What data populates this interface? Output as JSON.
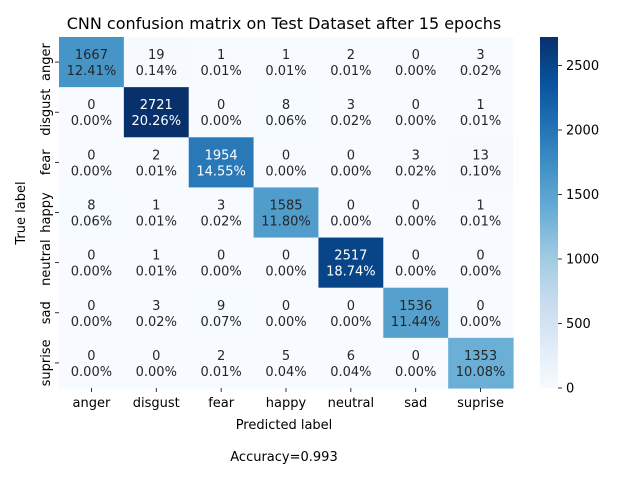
{
  "chart_data": {
    "type": "heatmap",
    "title": "CNN confusion matrix on Test Dataset after 15 epochs",
    "xlabel": "Predicted label",
    "ylabel": "True label",
    "footer": "Accuracy=0.993",
    "x_categories": [
      "anger",
      "disgust",
      "fear",
      "happy",
      "neutral",
      "sad",
      "suprise"
    ],
    "y_categories": [
      "anger",
      "disgust",
      "fear",
      "happy",
      "neutral",
      "sad",
      "suprise"
    ],
    "counts": [
      [
        1667,
        19,
        1,
        1,
        2,
        0,
        3
      ],
      [
        0,
        2721,
        0,
        8,
        3,
        0,
        1
      ],
      [
        0,
        2,
        1954,
        0,
        0,
        3,
        13
      ],
      [
        8,
        1,
        3,
        1585,
        0,
        0,
        1
      ],
      [
        0,
        1,
        0,
        0,
        2517,
        0,
        0
      ],
      [
        0,
        3,
        9,
        0,
        0,
        1536,
        0
      ],
      [
        0,
        0,
        2,
        5,
        6,
        0,
        1353
      ]
    ],
    "percents": [
      [
        "12.41%",
        "0.14%",
        "0.01%",
        "0.01%",
        "0.01%",
        "0.00%",
        "0.02%"
      ],
      [
        "0.00%",
        "20.26%",
        "0.00%",
        "0.06%",
        "0.02%",
        "0.00%",
        "0.01%"
      ],
      [
        "0.00%",
        "0.01%",
        "14.55%",
        "0.00%",
        "0.00%",
        "0.02%",
        "0.10%"
      ],
      [
        "0.06%",
        "0.01%",
        "0.02%",
        "11.80%",
        "0.00%",
        "0.00%",
        "0.01%"
      ],
      [
        "0.00%",
        "0.01%",
        "0.00%",
        "0.00%",
        "18.74%",
        "0.00%",
        "0.00%"
      ],
      [
        "0.00%",
        "0.02%",
        "0.07%",
        "0.00%",
        "0.00%",
        "11.44%",
        "0.00%"
      ],
      [
        "0.00%",
        "0.00%",
        "0.01%",
        "0.04%",
        "0.04%",
        "0.00%",
        "10.08%"
      ]
    ],
    "colorbar": {
      "colormap": "Blues",
      "range": [
        0,
        2721
      ],
      "ticks": [
        0,
        500,
        1000,
        1500,
        2000,
        2500
      ]
    }
  }
}
